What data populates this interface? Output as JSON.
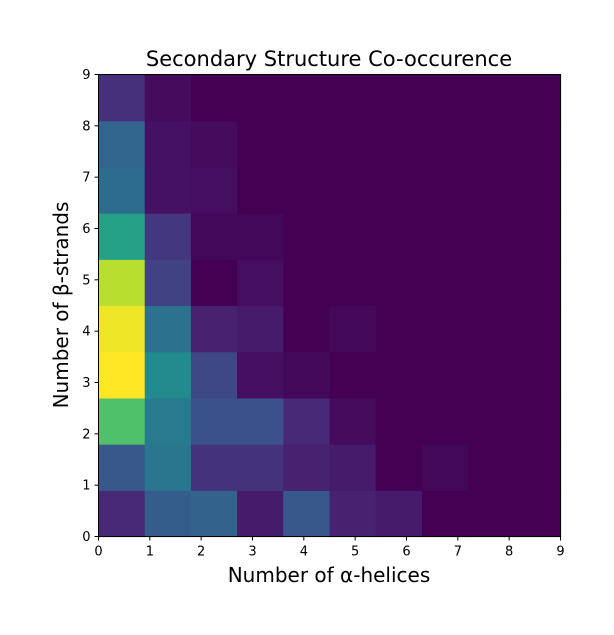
{
  "chart_data": {
    "type": "heatmap",
    "title": "Secondary Structure Co-occurence",
    "xlabel": "Number of α-helices",
    "ylabel": "Number of β-strands",
    "xlim": [
      0,
      9
    ],
    "ylim": [
      0,
      9
    ],
    "bins_x": 10,
    "bins_y": 10,
    "colormap": "viridis",
    "xticks": [
      "0",
      "1",
      "2",
      "3",
      "4",
      "5",
      "6",
      "7",
      "8",
      "9"
    ],
    "yticks": [
      "0",
      "1",
      "2",
      "3",
      "4",
      "5",
      "6",
      "7",
      "8",
      "9"
    ],
    "values": [
      [
        0.12,
        0.3,
        0.32,
        0.08,
        0.28,
        0.1,
        0.08,
        0.0,
        0.0,
        0.0
      ],
      [
        0.28,
        0.4,
        0.15,
        0.15,
        0.1,
        0.08,
        0.0,
        0.02,
        0.0,
        0.0
      ],
      [
        0.72,
        0.42,
        0.25,
        0.25,
        0.12,
        0.03,
        0.0,
        0.0,
        0.0,
        0.0
      ],
      [
        1.0,
        0.48,
        0.22,
        0.04,
        0.02,
        0.0,
        0.0,
        0.0,
        0.0,
        0.0
      ],
      [
        0.98,
        0.38,
        0.1,
        0.08,
        0.0,
        0.02,
        0.0,
        0.0,
        0.0,
        0.0
      ],
      [
        0.9,
        0.2,
        0.0,
        0.04,
        0.0,
        0.0,
        0.0,
        0.0,
        0.0,
        0.0
      ],
      [
        0.58,
        0.17,
        0.02,
        0.02,
        0.0,
        0.0,
        0.0,
        0.0,
        0.0,
        0.0
      ],
      [
        0.36,
        0.05,
        0.04,
        0.0,
        0.0,
        0.0,
        0.0,
        0.0,
        0.0,
        0.0
      ],
      [
        0.33,
        0.05,
        0.03,
        0.0,
        0.0,
        0.0,
        0.0,
        0.0,
        0.0,
        0.0
      ],
      [
        0.14,
        0.03,
        0.0,
        0.0,
        0.0,
        0.0,
        0.0,
        0.0,
        0.0,
        0.0
      ]
    ],
    "grid": false,
    "legend": "none"
  }
}
